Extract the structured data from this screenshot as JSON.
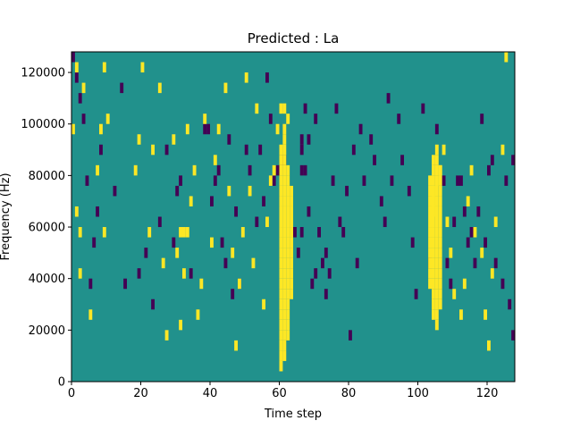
{
  "chart_data": {
    "type": "heatmap",
    "title": "Predicted : La",
    "xlabel": "Time step",
    "ylabel": "Frequency (Hz)",
    "xlim": [
      0,
      128
    ],
    "ylim": [
      0,
      128000
    ],
    "x_ticks": [
      0,
      20,
      40,
      60,
      80,
      100,
      120
    ],
    "y_ticks": [
      0,
      20000,
      40000,
      60000,
      80000,
      100000,
      120000
    ],
    "x_tick_labels": [
      "0",
      "20",
      "40",
      "60",
      "80",
      "100",
      "120"
    ],
    "y_tick_labels": [
      "0",
      "20000",
      "40000",
      "60000",
      "80000",
      "100000",
      "120000"
    ],
    "colormap": "viridis",
    "value_levels": {
      "low": "#440154",
      "mid": "#21918c",
      "high": "#fde725"
    },
    "background_value": "mid",
    "grid": false,
    "legend": "none",
    "cell_size": {
      "time_step": 1,
      "frequency_hz": 4000
    },
    "bright_cells": [
      [
        0,
        24
      ],
      [
        1,
        30
      ],
      [
        1,
        16
      ],
      [
        2,
        10
      ],
      [
        2,
        14
      ],
      [
        3,
        28
      ],
      [
        5,
        6
      ],
      [
        7,
        20
      ],
      [
        8,
        24
      ],
      [
        9,
        30
      ],
      [
        9,
        14
      ],
      [
        10,
        25
      ],
      [
        18,
        20
      ],
      [
        19,
        23
      ],
      [
        20,
        30
      ],
      [
        22,
        14
      ],
      [
        23,
        22
      ],
      [
        25,
        28
      ],
      [
        26,
        11
      ],
      [
        27,
        4
      ],
      [
        29,
        23
      ],
      [
        30,
        12
      ],
      [
        31,
        14
      ],
      [
        32,
        14
      ],
      [
        33,
        14
      ],
      [
        31,
        5
      ],
      [
        32,
        10
      ],
      [
        33,
        24
      ],
      [
        34,
        17
      ],
      [
        35,
        20
      ],
      [
        36,
        6
      ],
      [
        37,
        9
      ],
      [
        38,
        25
      ],
      [
        40,
        13
      ],
      [
        41,
        21
      ],
      [
        42,
        24
      ],
      [
        44,
        28
      ],
      [
        45,
        18
      ],
      [
        46,
        12
      ],
      [
        47,
        3
      ],
      [
        48,
        9
      ],
      [
        49,
        14
      ],
      [
        50,
        29
      ],
      [
        51,
        18
      ],
      [
        52,
        11
      ],
      [
        53,
        26
      ],
      [
        55,
        7
      ],
      [
        56,
        15
      ],
      [
        57,
        19
      ],
      [
        58,
        20
      ],
      [
        59,
        24
      ],
      [
        60,
        26
      ],
      [
        61,
        26
      ],
      [
        62,
        25
      ],
      [
        104,
        16
      ],
      [
        104,
        17
      ],
      [
        104,
        18
      ],
      [
        105,
        19
      ],
      [
        106,
        20
      ],
      [
        107,
        22
      ],
      [
        108,
        15
      ],
      [
        109,
        12
      ],
      [
        110,
        8
      ],
      [
        112,
        6
      ],
      [
        113,
        9
      ],
      [
        114,
        17
      ],
      [
        115,
        20
      ],
      [
        116,
        14
      ],
      [
        118,
        12
      ],
      [
        119,
        6
      ],
      [
        120,
        3
      ],
      [
        121,
        10
      ],
      [
        122,
        15
      ],
      [
        124,
        22
      ],
      [
        125,
        31
      ]
    ],
    "bright_columns": [
      {
        "x": 60,
        "from": 1,
        "to": 22
      },
      {
        "x": 61,
        "from": 2,
        "to": 24
      },
      {
        "x": 62,
        "from": 4,
        "to": 20
      },
      {
        "x": 63,
        "from": 8,
        "to": 18
      },
      {
        "x": 103,
        "from": 9,
        "to": 19
      },
      {
        "x": 104,
        "from": 6,
        "to": 21
      },
      {
        "x": 105,
        "from": 5,
        "to": 22
      },
      {
        "x": 106,
        "from": 7,
        "to": 20
      }
    ],
    "dark_cells": [
      [
        0,
        31
      ],
      [
        1,
        29
      ],
      [
        2,
        27
      ],
      [
        3,
        25
      ],
      [
        4,
        19
      ],
      [
        5,
        9
      ],
      [
        6,
        13
      ],
      [
        7,
        16
      ],
      [
        8,
        22
      ],
      [
        12,
        18
      ],
      [
        14,
        28
      ],
      [
        15,
        9
      ],
      [
        19,
        10
      ],
      [
        21,
        12
      ],
      [
        23,
        7
      ],
      [
        25,
        15
      ],
      [
        27,
        22
      ],
      [
        29,
        13
      ],
      [
        30,
        18
      ],
      [
        31,
        19
      ],
      [
        34,
        10
      ],
      [
        38,
        24
      ],
      [
        39,
        24
      ],
      [
        40,
        17
      ],
      [
        41,
        19
      ],
      [
        42,
        20
      ],
      [
        43,
        13
      ],
      [
        44,
        11
      ],
      [
        45,
        23
      ],
      [
        46,
        8
      ],
      [
        47,
        16
      ],
      [
        48,
        9
      ],
      [
        50,
        22
      ],
      [
        51,
        20
      ],
      [
        53,
        15
      ],
      [
        54,
        22
      ],
      [
        55,
        17
      ],
      [
        56,
        29
      ],
      [
        57,
        25
      ],
      [
        58,
        19
      ],
      [
        59,
        20
      ],
      [
        60,
        21
      ],
      [
        61,
        21
      ],
      [
        64,
        14
      ],
      [
        65,
        12
      ],
      [
        66,
        14
      ],
      [
        66,
        20
      ],
      [
        66,
        22
      ],
      [
        66,
        23
      ],
      [
        67,
        20
      ],
      [
        67,
        26
      ],
      [
        68,
        16
      ],
      [
        68,
        23
      ],
      [
        69,
        9
      ],
      [
        70,
        10
      ],
      [
        70,
        25
      ],
      [
        71,
        14
      ],
      [
        72,
        11
      ],
      [
        73,
        8
      ],
      [
        73,
        12
      ],
      [
        74,
        10
      ],
      [
        75,
        19
      ],
      [
        76,
        26
      ],
      [
        77,
        15
      ],
      [
        78,
        14
      ],
      [
        79,
        18
      ],
      [
        80,
        4
      ],
      [
        81,
        22
      ],
      [
        82,
        11
      ],
      [
        83,
        24
      ],
      [
        84,
        19
      ],
      [
        86,
        23
      ],
      [
        87,
        21
      ],
      [
        89,
        17
      ],
      [
        90,
        15
      ],
      [
        91,
        27
      ],
      [
        92,
        19
      ],
      [
        94,
        25
      ],
      [
        95,
        21
      ],
      [
        97,
        18
      ],
      [
        98,
        13
      ],
      [
        99,
        8
      ],
      [
        101,
        26
      ],
      [
        103,
        11
      ],
      [
        105,
        24
      ],
      [
        107,
        19
      ],
      [
        108,
        11
      ],
      [
        109,
        9
      ],
      [
        110,
        15
      ],
      [
        111,
        19
      ],
      [
        112,
        19
      ],
      [
        113,
        16
      ],
      [
        114,
        13
      ],
      [
        115,
        14
      ],
      [
        116,
        11
      ],
      [
        117,
        16
      ],
      [
        118,
        25
      ],
      [
        119,
        13
      ],
      [
        120,
        20
      ],
      [
        121,
        21
      ],
      [
        122,
        11
      ],
      [
        124,
        9
      ],
      [
        125,
        19
      ],
      [
        126,
        7
      ],
      [
        127,
        4
      ],
      [
        127,
        21
      ]
    ]
  }
}
